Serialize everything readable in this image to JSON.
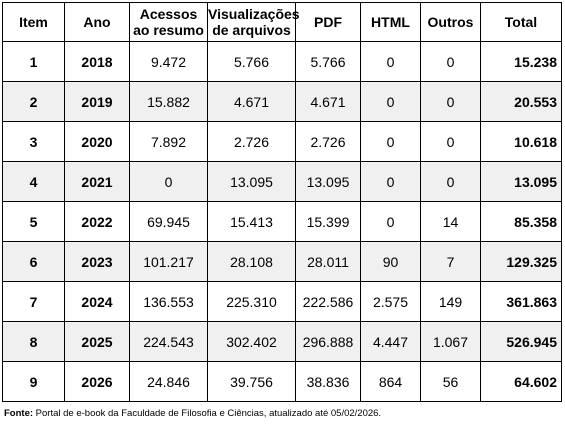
{
  "table": {
    "headers": [
      "Item",
      "Ano",
      "Acessos ao resumo",
      "Visualizações de arquivos",
      "PDF",
      "HTML",
      "Outros",
      "Total"
    ],
    "rows": [
      [
        "1",
        "2018",
        "9.472",
        "5.766",
        "5.766",
        "0",
        "0",
        "15.238"
      ],
      [
        "2",
        "2019",
        "15.882",
        "4.671",
        "4.671",
        "0",
        "0",
        "20.553"
      ],
      [
        "3",
        "2020",
        "7.892",
        "2.726",
        "2.726",
        "0",
        "0",
        "10.618"
      ],
      [
        "4",
        "2021",
        "0",
        "13.095",
        "13.095",
        "0",
        "0",
        "13.095"
      ],
      [
        "5",
        "2022",
        "69.945",
        "15.413",
        "15.399",
        "0",
        "14",
        "85.358"
      ],
      [
        "6",
        "2023",
        "101.217",
        "28.108",
        "28.011",
        "90",
        "7",
        "129.325"
      ],
      [
        "7",
        "2024",
        "136.553",
        "225.310",
        "222.586",
        "2.575",
        "149",
        "361.863"
      ],
      [
        "8",
        "2025",
        "224.543",
        "302.402",
        "296.888",
        "4.447",
        "1.067",
        "526.945"
      ],
      [
        "9",
        "2026",
        "24.846",
        "39.756",
        "38.836",
        "864",
        "56",
        "64.602"
      ]
    ]
  },
  "source": {
    "label": "Fonte:",
    "text": " Portal de e-book da Faculdade de Filosofia e Ciências, atualizado até 05/02/2026."
  },
  "colors": {
    "shaded_row": "#f0f0f0",
    "border": "#000000"
  }
}
